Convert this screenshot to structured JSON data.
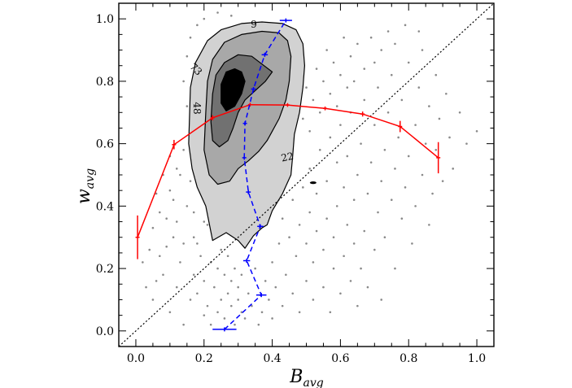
{
  "chart_data": {
    "type": "scatter",
    "xlabel": {
      "main": "B",
      "sub": "avg"
    },
    "ylabel": {
      "main": "w",
      "sub": "avg"
    },
    "xlim": [
      -0.05,
      1.05
    ],
    "ylim": [
      -0.05,
      1.05
    ],
    "xticks": [
      0.0,
      0.2,
      0.4,
      0.6,
      0.8,
      1.0
    ],
    "yticks": [
      0.0,
      0.2,
      0.4,
      0.6,
      0.8,
      1.0
    ],
    "xtick_labels": [
      "0.0",
      "0.2",
      "0.4",
      "0.6",
      "0.8",
      "1.0"
    ],
    "ytick_labels": [
      "0.0",
      "0.2",
      "0.4",
      "0.6",
      "0.8",
      "1.0"
    ],
    "diagonal": {
      "from": [
        -0.05,
        -0.05
      ],
      "to": [
        1.05,
        1.05
      ],
      "style": "dotted"
    },
    "contour_labels": [
      "9",
      "22",
      "48",
      "73"
    ],
    "contours": [
      {
        "level": "9",
        "fill": "#d2d2d2",
        "points": [
          [
            0.155,
            0.6
          ],
          [
            0.16,
            0.78
          ],
          [
            0.175,
            0.86
          ],
          [
            0.21,
            0.93
          ],
          [
            0.25,
            0.965
          ],
          [
            0.31,
            0.985
          ],
          [
            0.37,
            0.99
          ],
          [
            0.43,
            0.985
          ],
          [
            0.47,
            0.965
          ],
          [
            0.49,
            0.92
          ],
          [
            0.495,
            0.85
          ],
          [
            0.49,
            0.78
          ],
          [
            0.48,
            0.7
          ],
          [
            0.465,
            0.63
          ],
          [
            0.46,
            0.56
          ],
          [
            0.455,
            0.5
          ],
          [
            0.43,
            0.44
          ],
          [
            0.4,
            0.385
          ],
          [
            0.385,
            0.34
          ],
          [
            0.37,
            0.33
          ],
          [
            0.345,
            0.305
          ],
          [
            0.32,
            0.265
          ],
          [
            0.3,
            0.29
          ],
          [
            0.265,
            0.315
          ],
          [
            0.225,
            0.29
          ],
          [
            0.205,
            0.4
          ],
          [
            0.18,
            0.46
          ],
          [
            0.165,
            0.52
          ]
        ]
      },
      {
        "level": "22",
        "fill": "#a8a8a8",
        "points": [
          [
            0.2,
            0.58
          ],
          [
            0.205,
            0.7
          ],
          [
            0.21,
            0.8
          ],
          [
            0.225,
            0.87
          ],
          [
            0.26,
            0.925
          ],
          [
            0.31,
            0.95
          ],
          [
            0.37,
            0.96
          ],
          [
            0.42,
            0.955
          ],
          [
            0.445,
            0.93
          ],
          [
            0.455,
            0.88
          ],
          [
            0.45,
            0.8
          ],
          [
            0.44,
            0.74
          ],
          [
            0.42,
            0.68
          ],
          [
            0.4,
            0.64
          ],
          [
            0.385,
            0.61
          ],
          [
            0.36,
            0.575
          ],
          [
            0.33,
            0.545
          ],
          [
            0.3,
            0.52
          ],
          [
            0.275,
            0.48
          ],
          [
            0.24,
            0.47
          ],
          [
            0.215,
            0.5
          ]
        ]
      },
      {
        "level": "48",
        "fill": "#717171",
        "points": [
          [
            0.22,
            0.67
          ],
          [
            0.225,
            0.76
          ],
          [
            0.235,
            0.82
          ],
          [
            0.26,
            0.86
          ],
          [
            0.3,
            0.885
          ],
          [
            0.34,
            0.88
          ],
          [
            0.37,
            0.855
          ],
          [
            0.4,
            0.83
          ],
          [
            0.38,
            0.8
          ],
          [
            0.35,
            0.77
          ],
          [
            0.32,
            0.74
          ],
          [
            0.3,
            0.7
          ],
          [
            0.285,
            0.65
          ],
          [
            0.27,
            0.61
          ],
          [
            0.245,
            0.59
          ],
          [
            0.225,
            0.61
          ]
        ]
      },
      {
        "level": "73",
        "fill": "#000000",
        "points": [
          [
            0.25,
            0.73
          ],
          [
            0.25,
            0.79
          ],
          [
            0.265,
            0.83
          ],
          [
            0.29,
            0.84
          ],
          [
            0.31,
            0.83
          ],
          [
            0.32,
            0.8
          ],
          [
            0.31,
            0.76
          ],
          [
            0.29,
            0.72
          ],
          [
            0.265,
            0.705
          ]
        ]
      }
    ],
    "series": [
      {
        "color": "#ff0000",
        "style": "solid",
        "x": [
          0.005,
          0.112,
          0.225,
          0.335,
          0.445,
          0.555,
          0.665,
          0.775,
          0.887
        ],
        "y": [
          0.3,
          0.597,
          0.683,
          0.725,
          0.724,
          0.713,
          0.695,
          0.655,
          0.555
        ],
        "yerr": [
          0.07,
          0.015,
          0.008,
          0.006,
          0.006,
          0.006,
          0.008,
          0.018,
          0.05
        ]
      },
      {
        "color": "#0000ff",
        "style": "dashed",
        "x": [
          0.26,
          0.368,
          0.325,
          0.365,
          0.33,
          0.318,
          0.32,
          0.345,
          0.378,
          0.44
        ],
        "y": [
          0.005,
          0.115,
          0.225,
          0.335,
          0.445,
          0.555,
          0.665,
          0.775,
          0.885,
          0.995
        ],
        "xerr": [
          0.035,
          0.015,
          0.01,
          0.009,
          0.007,
          0.006,
          0.006,
          0.007,
          0.009,
          0.018
        ]
      }
    ],
    "scatter_points": [
      [
        0.02,
        0.22
      ],
      [
        0.05,
        0.33
      ],
      [
        0.07,
        0.38
      ],
      [
        0.09,
        0.27
      ],
      [
        0.1,
        0.45
      ],
      [
        0.12,
        0.35
      ],
      [
        0.13,
        0.5
      ],
      [
        0.14,
        0.28
      ],
      [
        0.15,
        0.4
      ],
      [
        0.16,
        0.62
      ],
      [
        0.17,
        0.18
      ],
      [
        0.17,
        0.3
      ],
      [
        0.18,
        0.12
      ],
      [
        0.18,
        0.55
      ],
      [
        0.19,
        0.24
      ],
      [
        0.19,
        0.7
      ],
      [
        0.2,
        0.05
      ],
      [
        0.2,
        0.16
      ],
      [
        0.2,
        0.35
      ],
      [
        0.21,
        0.45
      ],
      [
        0.21,
        0.08
      ],
      [
        0.22,
        0.22
      ],
      [
        0.22,
        0.02
      ],
      [
        0.23,
        0.14
      ],
      [
        0.23,
        0.3
      ],
      [
        0.24,
        0.06
      ],
      [
        0.24,
        0.2
      ],
      [
        0.25,
        0.1
      ],
      [
        0.25,
        0.26
      ],
      [
        0.26,
        0.18
      ],
      [
        0.26,
        0.04
      ],
      [
        0.27,
        0.12
      ],
      [
        0.27,
        0.24
      ],
      [
        0.28,
        0.08
      ],
      [
        0.28,
        0.16
      ],
      [
        0.29,
        0.2
      ],
      [
        0.29,
        0.02
      ],
      [
        0.3,
        0.1
      ],
      [
        0.3,
        0.14
      ],
      [
        0.31,
        0.06
      ],
      [
        0.31,
        0.18
      ],
      [
        0.32,
        0.04
      ],
      [
        0.33,
        0.12
      ],
      [
        0.34,
        0.08
      ],
      [
        0.35,
        0.2
      ],
      [
        0.36,
        0.02
      ],
      [
        0.37,
        0.06
      ],
      [
        0.38,
        0.16
      ],
      [
        0.39,
        0.1
      ],
      [
        0.4,
        0.04
      ],
      [
        0.4,
        0.22
      ],
      [
        0.41,
        0.14
      ],
      [
        0.42,
        0.28
      ],
      [
        0.43,
        0.08
      ],
      [
        0.43,
        0.36
      ],
      [
        0.44,
        0.18
      ],
      [
        0.45,
        0.3
      ],
      [
        0.46,
        0.12
      ],
      [
        0.46,
        0.42
      ],
      [
        0.47,
        0.24
      ],
      [
        0.48,
        0.34
      ],
      [
        0.48,
        0.06
      ],
      [
        0.49,
        0.46
      ],
      [
        0.5,
        0.16
      ],
      [
        0.5,
        0.28
      ],
      [
        0.51,
        0.38
      ],
      [
        0.51,
        0.52
      ],
      [
        0.52,
        0.1
      ],
      [
        0.52,
        0.22
      ],
      [
        0.53,
        0.32
      ],
      [
        0.53,
        0.44
      ],
      [
        0.54,
        0.58
      ],
      [
        0.55,
        0.14
      ],
      [
        0.55,
        0.26
      ],
      [
        0.56,
        0.36
      ],
      [
        0.56,
        0.48
      ],
      [
        0.57,
        0.62
      ],
      [
        0.57,
        0.06
      ],
      [
        0.58,
        0.2
      ],
      [
        0.58,
        0.3
      ],
      [
        0.59,
        0.4
      ],
      [
        0.59,
        0.54
      ],
      [
        0.6,
        0.12
      ],
      [
        0.6,
        0.66
      ],
      [
        0.61,
        0.24
      ],
      [
        0.61,
        0.46
      ],
      [
        0.62,
        0.34
      ],
      [
        0.62,
        0.56
      ],
      [
        0.63,
        0.16
      ],
      [
        0.63,
        0.7
      ],
      [
        0.64,
        0.28
      ],
      [
        0.64,
        0.42
      ],
      [
        0.65,
        0.5
      ],
      [
        0.65,
        0.08
      ],
      [
        0.66,
        0.2
      ],
      [
        0.66,
        0.6
      ],
      [
        0.67,
        0.32
      ],
      [
        0.67,
        0.74
      ],
      [
        0.68,
        0.44
      ],
      [
        0.68,
        0.14
      ],
      [
        0.69,
        0.54
      ],
      [
        0.7,
        0.26
      ],
      [
        0.7,
        0.66
      ],
      [
        0.71,
        0.38
      ],
      [
        0.71,
        0.78
      ],
      [
        0.72,
        0.48
      ],
      [
        0.72,
        0.1
      ],
      [
        0.73,
        0.58
      ],
      [
        0.73,
        0.3
      ],
      [
        0.74,
        0.7
      ],
      [
        0.75,
        0.42
      ],
      [
        0.75,
        0.82
      ],
      [
        0.76,
        0.52
      ],
      [
        0.76,
        0.2
      ],
      [
        0.77,
        0.62
      ],
      [
        0.78,
        0.36
      ],
      [
        0.78,
        0.74
      ],
      [
        0.79,
        0.46
      ],
      [
        0.8,
        0.56
      ],
      [
        0.8,
        0.86
      ],
      [
        0.81,
        0.28
      ],
      [
        0.82,
        0.66
      ],
      [
        0.82,
        0.4
      ],
      [
        0.83,
        0.78
      ],
      [
        0.84,
        0.5
      ],
      [
        0.84,
        0.9
      ],
      [
        0.85,
        0.6
      ],
      [
        0.86,
        0.34
      ],
      [
        0.86,
        0.72
      ],
      [
        0.87,
        0.44
      ],
      [
        0.88,
        0.82
      ],
      [
        0.88,
        0.58
      ],
      [
        0.89,
        0.68
      ],
      [
        0.9,
        0.48
      ],
      [
        0.91,
        0.76
      ],
      [
        0.92,
        0.62
      ],
      [
        0.93,
        0.52
      ],
      [
        0.95,
        0.7
      ],
      [
        0.97,
        0.6
      ],
      [
        1.0,
        0.64
      ],
      [
        0.46,
        0.62
      ],
      [
        0.47,
        0.72
      ],
      [
        0.48,
        0.86
      ],
      [
        0.49,
        0.68
      ],
      [
        0.5,
        0.78
      ],
      [
        0.51,
        0.64
      ],
      [
        0.52,
        0.74
      ],
      [
        0.53,
        0.84
      ],
      [
        0.54,
        0.7
      ],
      [
        0.55,
        0.8
      ],
      [
        0.56,
        0.9
      ],
      [
        0.57,
        0.76
      ],
      [
        0.58,
        0.86
      ],
      [
        0.59,
        0.72
      ],
      [
        0.6,
        0.82
      ],
      [
        0.61,
        0.94
      ],
      [
        0.62,
        0.78
      ],
      [
        0.63,
        0.88
      ],
      [
        0.64,
        0.8
      ],
      [
        0.65,
        0.92
      ],
      [
        0.67,
        0.84
      ],
      [
        0.69,
        0.94
      ],
      [
        0.7,
        0.86
      ],
      [
        0.72,
        0.9
      ],
      [
        0.74,
        0.96
      ],
      [
        0.76,
        0.92
      ],
      [
        0.79,
        0.98
      ],
      [
        0.83,
        0.96
      ],
      [
        0.15,
        0.72
      ],
      [
        0.14,
        0.8
      ],
      [
        0.15,
        0.88
      ],
      [
        0.16,
        0.94
      ],
      [
        0.18,
        0.98
      ],
      [
        0.2,
        1.0
      ],
      [
        0.24,
        1.02
      ],
      [
        0.28,
        1.01
      ],
      [
        0.16,
        0.48
      ],
      [
        0.17,
        0.38
      ],
      [
        0.19,
        0.52
      ],
      [
        0.21,
        0.34
      ],
      [
        0.11,
        0.42
      ],
      [
        0.08,
        0.5
      ],
      [
        0.06,
        0.44
      ],
      [
        0.04,
        0.26
      ],
      [
        0.03,
        0.14
      ],
      [
        0.05,
        0.1
      ],
      [
        0.08,
        0.18
      ],
      [
        0.1,
        0.06
      ],
      [
        0.12,
        0.14
      ],
      [
        0.14,
        0.02
      ],
      [
        0.16,
        0.1
      ],
      [
        0.18,
        0.28
      ],
      [
        0.13,
        0.22
      ],
      [
        0.11,
        0.3
      ],
      [
        0.09,
        0.36
      ],
      [
        0.07,
        0.24
      ],
      [
        0.06,
        0.16
      ],
      [
        0.12,
        0.52
      ],
      [
        0.14,
        0.58
      ],
      [
        0.1,
        0.56
      ]
    ]
  }
}
